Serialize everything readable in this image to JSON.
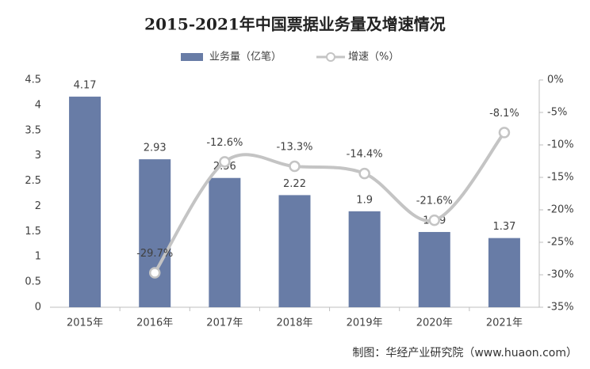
{
  "chart_data": {
    "type": "bar_line",
    "title": "2015-2021年中国票据业务量及增速情况",
    "categories": [
      "2015年",
      "2016年",
      "2017年",
      "2018年",
      "2019年",
      "2020年",
      "2021年"
    ],
    "series": [
      {
        "name": "业务量（亿笔）",
        "color": "#687ca6",
        "type": "bar",
        "values": [
          4.17,
          2.93,
          2.56,
          2.22,
          1.9,
          1.49,
          1.37
        ]
      },
      {
        "name": "增速（%）",
        "color": "#c4c4c4",
        "type": "line",
        "axis": "y2",
        "values": [
          null,
          -29.7,
          -12.6,
          -13.3,
          -14.4,
          -21.6,
          -8.1
        ],
        "value_labels": [
          null,
          "-29.7%",
          "-12.6%",
          "-13.3%",
          "-14.4%",
          "-21.6%",
          "-8.1%"
        ]
      }
    ],
    "ylim": [
      0,
      4.5
    ],
    "yticks": [
      0,
      0.5,
      1,
      1.5,
      2,
      2.5,
      3,
      3.5,
      4,
      4.5
    ],
    "y2lim": [
      -35,
      0
    ],
    "y2ticks": [
      {
        "value": 0,
        "label": "0%"
      },
      {
        "value": -5,
        "label": "-5%"
      },
      {
        "value": -10,
        "label": "-10%"
      },
      {
        "value": -15,
        "label": "-15%"
      },
      {
        "value": -20,
        "label": "-20%"
      },
      {
        "value": -25,
        "label": "-25%"
      },
      {
        "value": -30,
        "label": "-30%"
      },
      {
        "value": -35,
        "label": "-35%"
      }
    ],
    "grid": false,
    "source": "制图：华经产业研究院（www.huaon.com）"
  }
}
